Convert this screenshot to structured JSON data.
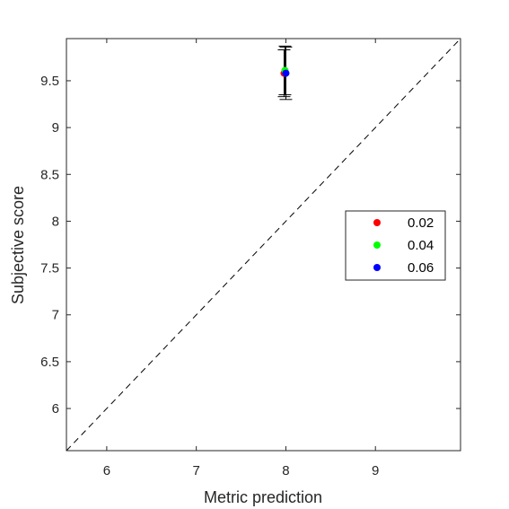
{
  "chart_data": {
    "type": "scatter",
    "xlabel": "Metric prediction",
    "ylabel": "Subjective score",
    "xlim": [
      5.55,
      9.95
    ],
    "ylim": [
      5.55,
      9.95
    ],
    "x_ticks": [
      6,
      7,
      8,
      9
    ],
    "y_ticks": [
      6,
      6.5,
      7,
      7.5,
      8,
      8.5,
      9,
      9.5
    ],
    "x_tick_labels": [
      "6",
      "7",
      "8",
      "9"
    ],
    "y_tick_labels": [
      "6",
      "6.5",
      "7",
      "7.5",
      "8",
      "8.5",
      "9",
      "9.5"
    ],
    "grid": false,
    "reference_line": "y = x, dashed",
    "legend_position": "right-middle",
    "series": [
      {
        "name": "0.02",
        "color": "#ff0000",
        "x": [
          7.98
        ],
        "y": [
          9.58
        ],
        "error_low": [
          9.33
        ],
        "error_high": [
          9.83
        ]
      },
      {
        "name": "0.04",
        "color": "#00ff00",
        "x": [
          7.99
        ],
        "y": [
          9.61
        ],
        "error_low": [
          9.35
        ],
        "error_high": [
          9.87
        ]
      },
      {
        "name": "0.06",
        "color": "#0000ff",
        "x": [
          8.0
        ],
        "y": [
          9.58
        ],
        "error_low": [
          9.3
        ],
        "error_high": [
          9.86
        ]
      }
    ]
  }
}
